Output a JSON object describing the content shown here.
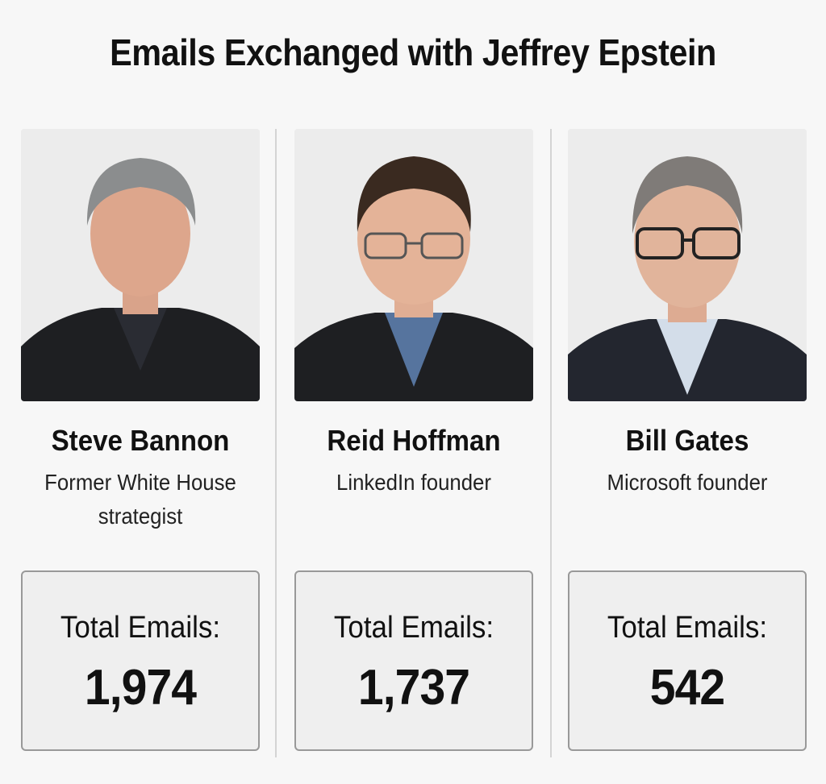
{
  "title": "Emails Exchanged with Jeffrey Epstein",
  "people": [
    {
      "name": "Steve Bannon",
      "role": "Former White House strategist",
      "total_label": "Total Emails:",
      "total_value": "1,974"
    },
    {
      "name": "Reid Hoffman",
      "role": "LinkedIn founder",
      "total_label": "Total Emails:",
      "total_value": "1,737"
    },
    {
      "name": "Bill Gates",
      "role": "Microsoft founder",
      "total_label": "Total Emails:",
      "total_value": "542"
    }
  ],
  "colors": {
    "background": "#f7f7f7",
    "photo_background": "#ececec",
    "jacket": "#1e1f22",
    "box_border": "#999999"
  }
}
